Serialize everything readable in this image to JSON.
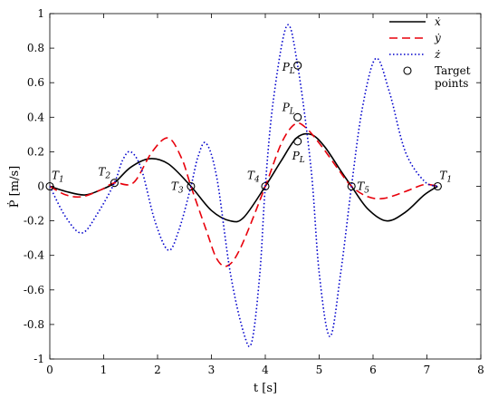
{
  "chart_data": {
    "type": "line",
    "xlabel": "t [s]",
    "ylabel": "Ṗ [m/s]",
    "xlim": [
      0,
      8
    ],
    "ylim": [
      -1,
      1
    ],
    "xticks": [
      0,
      1,
      2,
      3,
      4,
      5,
      6,
      7,
      8
    ],
    "yticks": [
      -1,
      -0.8,
      -0.6,
      -0.4,
      -0.2,
      0,
      0.2,
      0.4,
      0.6,
      0.8,
      1
    ],
    "legend_position": "top-right",
    "grid": false,
    "series": [
      {
        "name": "ẋ",
        "style": "solid",
        "color": "#000000",
        "points": [
          [
            0,
            0
          ],
          [
            0.3,
            -0.03
          ],
          [
            0.65,
            -0.05
          ],
          [
            0.95,
            -0.02
          ],
          [
            1.2,
            0.02
          ],
          [
            1.5,
            0.11
          ],
          [
            1.85,
            0.16
          ],
          [
            2.2,
            0.13
          ],
          [
            2.62,
            0
          ],
          [
            3.0,
            -0.14
          ],
          [
            3.35,
            -0.2
          ],
          [
            3.6,
            -0.18
          ],
          [
            4.0,
            0
          ],
          [
            4.3,
            0.15
          ],
          [
            4.58,
            0.28
          ],
          [
            4.85,
            0.3
          ],
          [
            5.1,
            0.23
          ],
          [
            5.4,
            0.09
          ],
          [
            5.6,
            0
          ],
          [
            5.9,
            -0.13
          ],
          [
            6.25,
            -0.2
          ],
          [
            6.6,
            -0.15
          ],
          [
            6.95,
            -0.05
          ],
          [
            7.2,
            0
          ]
        ]
      },
      {
        "name": "ẏ",
        "style": "dashed",
        "color": "#e8000b",
        "points": [
          [
            0,
            0
          ],
          [
            0.3,
            -0.05
          ],
          [
            0.6,
            -0.06
          ],
          [
            0.95,
            -0.02
          ],
          [
            1.2,
            0.02
          ],
          [
            1.55,
            0.02
          ],
          [
            1.9,
            0.2
          ],
          [
            2.2,
            0.28
          ],
          [
            2.45,
            0.16
          ],
          [
            2.62,
            0
          ],
          [
            2.9,
            -0.25
          ],
          [
            3.1,
            -0.42
          ],
          [
            3.3,
            -0.46
          ],
          [
            3.55,
            -0.35
          ],
          [
            4.0,
            0
          ],
          [
            4.3,
            0.25
          ],
          [
            4.55,
            0.36
          ],
          [
            4.75,
            0.34
          ],
          [
            5.05,
            0.23
          ],
          [
            5.35,
            0.1
          ],
          [
            5.6,
            0
          ],
          [
            5.9,
            -0.06
          ],
          [
            6.2,
            -0.07
          ],
          [
            6.6,
            -0.03
          ],
          [
            6.95,
            0.01
          ],
          [
            7.2,
            0
          ]
        ]
      },
      {
        "name": "ż",
        "style": "dotted",
        "color": "#0000cc",
        "points": [
          [
            0,
            0
          ],
          [
            0.3,
            -0.18
          ],
          [
            0.6,
            -0.27
          ],
          [
            0.9,
            -0.15
          ],
          [
            1.2,
            0.02
          ],
          [
            1.35,
            0.15
          ],
          [
            1.5,
            0.2
          ],
          [
            1.7,
            0.1
          ],
          [
            1.95,
            -0.2
          ],
          [
            2.2,
            -0.37
          ],
          [
            2.4,
            -0.25
          ],
          [
            2.62,
            0
          ],
          [
            2.75,
            0.17
          ],
          [
            2.9,
            0.25
          ],
          [
            3.1,
            0.05
          ],
          [
            3.35,
            -0.5
          ],
          [
            3.6,
            -0.85
          ],
          [
            3.75,
            -0.9
          ],
          [
            3.9,
            -0.5
          ],
          [
            4.0,
            0
          ],
          [
            4.15,
            0.5
          ],
          [
            4.4,
            0.93
          ],
          [
            4.6,
            0.7
          ],
          [
            4.85,
            0.1
          ],
          [
            5.0,
            -0.5
          ],
          [
            5.2,
            -0.87
          ],
          [
            5.4,
            -0.5
          ],
          [
            5.6,
            0
          ],
          [
            5.8,
            0.45
          ],
          [
            6.05,
            0.74
          ],
          [
            6.3,
            0.55
          ],
          [
            6.6,
            0.2
          ],
          [
            6.95,
            0.03
          ],
          [
            7.2,
            0
          ]
        ]
      }
    ],
    "target_points": [
      [
        0,
        0
      ],
      [
        1.2,
        0.02
      ],
      [
        2.62,
        0
      ],
      [
        4.0,
        0
      ],
      [
        5.6,
        0
      ],
      [
        7.2,
        0
      ],
      [
        4.6,
        0.26
      ],
      [
        4.6,
        0.4
      ],
      [
        4.6,
        0.7
      ]
    ],
    "annotations": [
      {
        "text": "T1",
        "x": 0,
        "y": 0
      },
      {
        "text": "T2",
        "x": 1.2,
        "y": 0.02
      },
      {
        "text": "T3",
        "x": 2.62,
        "y": 0
      },
      {
        "text": "T4",
        "x": 4.0,
        "y": 0
      },
      {
        "text": "T5",
        "x": 5.6,
        "y": 0
      },
      {
        "text": "T1",
        "x": 7.2,
        "y": 0
      },
      {
        "text": "PL",
        "x": 4.6,
        "y": 0.7
      },
      {
        "text": "PL",
        "x": 4.6,
        "y": 0.4
      },
      {
        "text": "PL",
        "x": 4.6,
        "y": 0.26
      }
    ],
    "legend": [
      {
        "label": "ẋ",
        "kind": "line",
        "style": "solid",
        "color": "#000000"
      },
      {
        "label": "ẏ",
        "kind": "line",
        "style": "dashed",
        "color": "#e8000b"
      },
      {
        "label": "ż",
        "kind": "line",
        "style": "dotted",
        "color": "#0000cc"
      },
      {
        "label": "Target points",
        "kind": "marker"
      }
    ]
  }
}
